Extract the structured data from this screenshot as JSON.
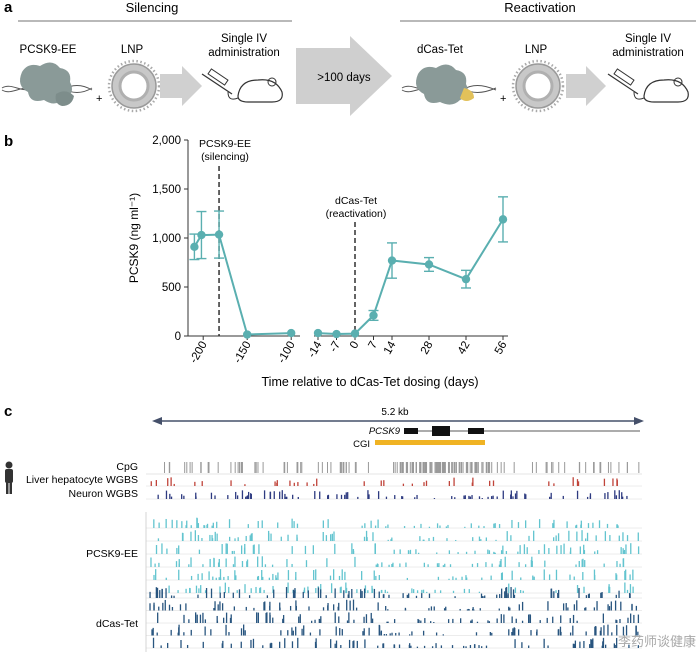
{
  "panel_a": {
    "label": "a",
    "section_left": "Silencing",
    "section_right": "Reactivation",
    "items_left": [
      "PCSK9-EE",
      "LNP",
      "Single IV",
      "administration"
    ],
    "items_right": [
      "dCas-Tet",
      "LNP",
      "Single IV",
      "administration"
    ],
    "plus": "+",
    "arrow_label": ">100 days",
    "colors": {
      "protein": "#8a9a98",
      "dna": "#555555",
      "lnp": "#bfbfbf",
      "arrow": "#c8c8c8"
    }
  },
  "panel_b": {
    "label": "b",
    "annotation_1": [
      "PCSK9-EE",
      "(silencing)"
    ],
    "annotation_2": [
      "dCas-Tet",
      "(reactivation)"
    ]
  },
  "chart_data": {
    "type": "line",
    "xlabel": "Time relative to dCas-Tet dosing (days)",
    "ylabel": "PCSK9  (ng ml⁻¹)",
    "ylim": [
      0,
      2000
    ],
    "y_ticks": [
      "0",
      "500",
      "1,000",
      "1,500",
      "2,000"
    ],
    "x_ticks_left": [
      "-200",
      "-150",
      "-100"
    ],
    "x_ticks_right": [
      "-14",
      "-7",
      "0",
      "7",
      "14",
      "28",
      "42",
      "56"
    ],
    "series_color": "#5aafb0",
    "broken_x_axis": true,
    "points": [
      {
        "x": -210,
        "y": 910,
        "err": 130
      },
      {
        "x": -202,
        "y": 1030,
        "err": 240
      },
      {
        "x": -182,
        "y": 1035,
        "err": 240
      },
      {
        "x": -150,
        "y": 15,
        "err": 0
      },
      {
        "x": -100,
        "y": 30,
        "err": 0
      },
      {
        "x": -14,
        "y": 30,
        "err": 0
      },
      {
        "x": -7,
        "y": 20,
        "err": 0
      },
      {
        "x": 0,
        "y": 25,
        "err": 0
      },
      {
        "x": 7,
        "y": 210,
        "err": 50
      },
      {
        "x": 14,
        "y": 770,
        "err": 180
      },
      {
        "x": 28,
        "y": 730,
        "err": 70
      },
      {
        "x": 42,
        "y": 580,
        "err": 90
      },
      {
        "x": 56,
        "y": 1190,
        "err": 230
      }
    ],
    "event_lines": [
      -182,
      0
    ]
  },
  "panel_c": {
    "label": "c",
    "scale_label": "5.2 kb",
    "gene_label": "PCSK9",
    "cgi_label": "CGI",
    "track_labels": [
      "CpG",
      "Liver hepatocyte WGBS",
      "Neuron WGBS"
    ],
    "group_labels": [
      "PCSK9-EE",
      "dCas-Tet"
    ],
    "colors": {
      "scale_arrow": "#45506a",
      "cgi": "#f0b323",
      "cpg": "#999999",
      "liver": "#c0443a",
      "neuron": "#2d3a80",
      "pcsk9ee": "#62c4cf",
      "dcastet": "#28557f"
    }
  },
  "watermark": "李药师谈健康"
}
